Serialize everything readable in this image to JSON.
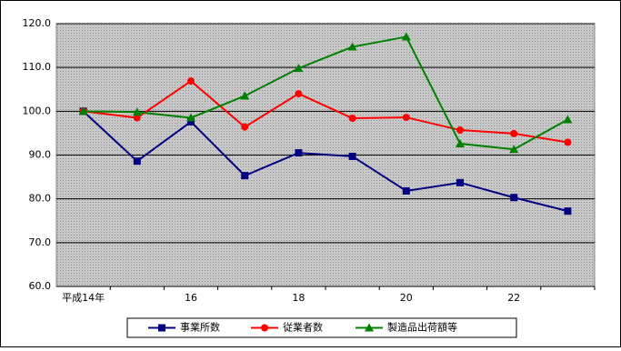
{
  "chart_data": {
    "type": "line",
    "categories": [
      "平成14年",
      null,
      "16",
      null,
      "18",
      null,
      "20",
      null,
      "22",
      null
    ],
    "series": [
      {
        "name": "事業所数",
        "color": "#000080",
        "marker": "square",
        "values": [
          100.0,
          88.6,
          97.6,
          85.3,
          90.5,
          89.7,
          81.8,
          83.7,
          80.3,
          77.2
        ]
      },
      {
        "name": "従業者数",
        "color": "#ff0000",
        "marker": "circle",
        "values": [
          100.0,
          98.5,
          106.9,
          96.4,
          104.0,
          98.4,
          98.6,
          95.7,
          94.9,
          92.9
        ]
      },
      {
        "name": "製造品出荷額等",
        "color": "#008000",
        "marker": "triangle",
        "values": [
          100.0,
          99.8,
          98.5,
          103.5,
          109.8,
          114.7,
          117.0,
          92.6,
          91.3,
          98.1
        ]
      }
    ],
    "ylim": [
      60,
      120
    ],
    "yticks": [
      {
        "value": 60,
        "label": "60.0"
      },
      {
        "value": 70,
        "label": "70.0"
      },
      {
        "value": 80,
        "label": "80.0"
      },
      {
        "value": 90,
        "label": "90.0"
      },
      {
        "value": 100,
        "label": "100.0"
      },
      {
        "value": 110,
        "label": "110.0"
      },
      {
        "value": 120,
        "label": "120.0"
      }
    ],
    "grid": true,
    "legend": "bottom"
  }
}
